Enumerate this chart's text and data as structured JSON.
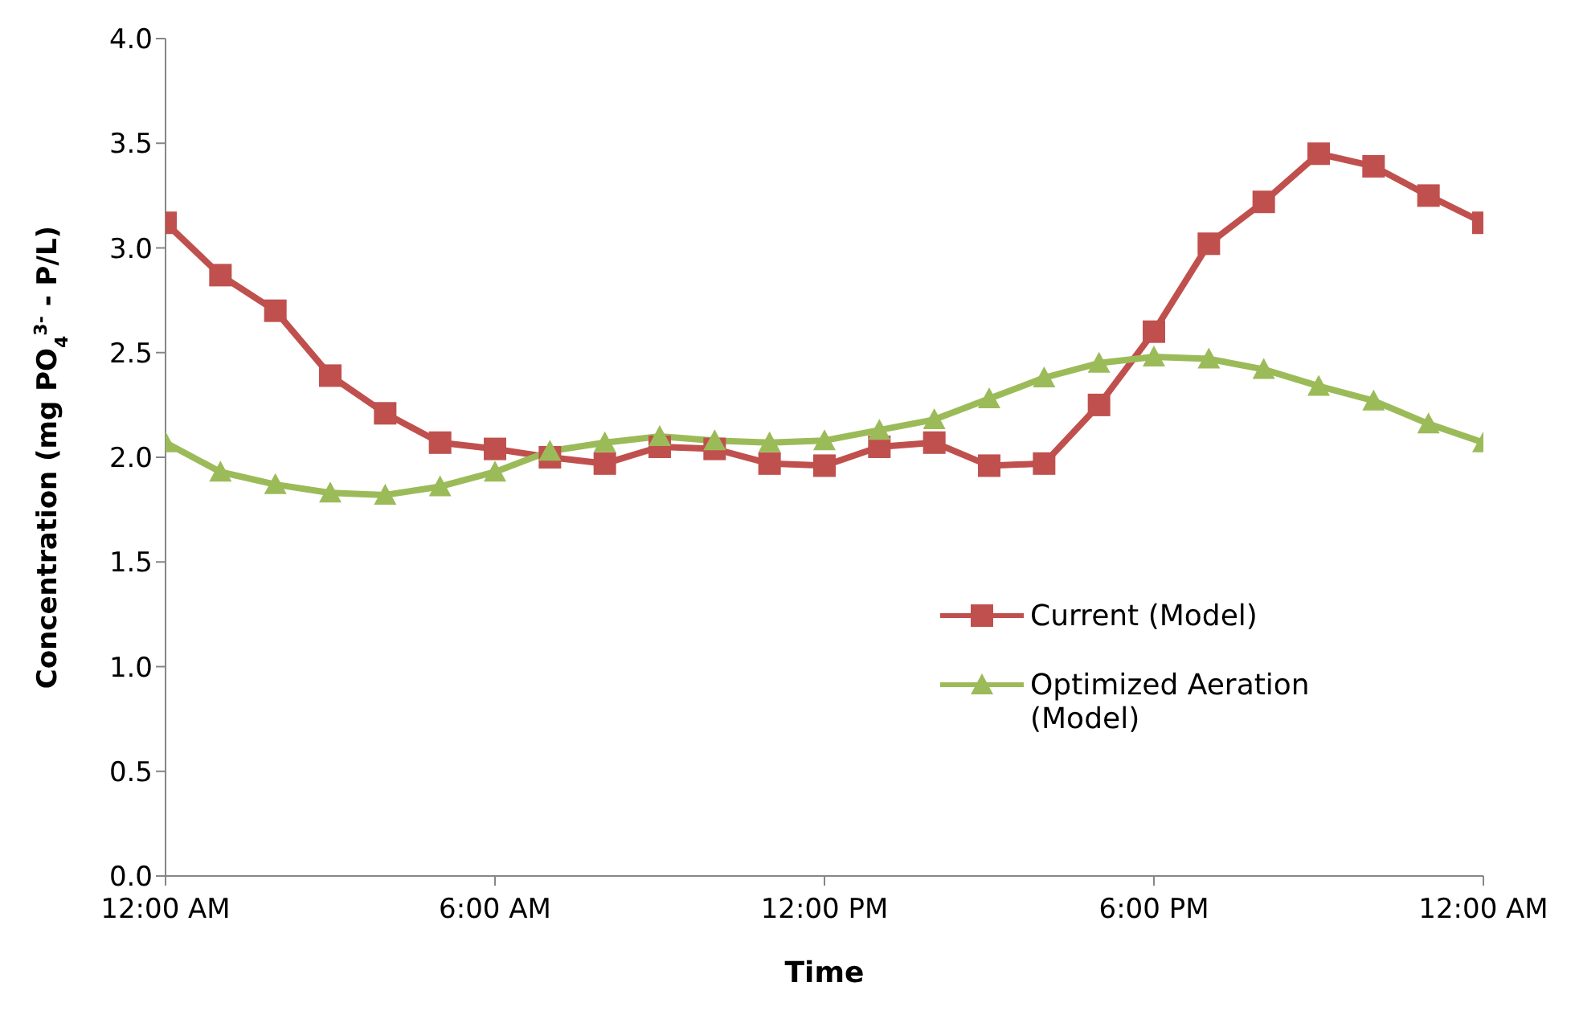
{
  "chart_data": {
    "type": "line",
    "xlabel": "Time",
    "ylabel": "Concentration (mg PO$_{4}$$^{3-}$ - P/L)",
    "x": [
      0,
      1,
      2,
      3,
      4,
      5,
      6,
      7,
      8,
      9,
      10,
      11,
      12,
      13,
      14,
      15,
      16,
      17,
      18,
      19,
      20,
      21,
      22,
      23,
      24
    ],
    "series": [
      {
        "name": "Current (Model)",
        "color": "#c0504d",
        "marker": "square",
        "values": [
          3.12,
          2.87,
          2.7,
          2.39,
          2.21,
          2.07,
          2.04,
          2.0,
          1.97,
          2.05,
          2.04,
          1.97,
          1.96,
          2.05,
          2.07,
          1.96,
          1.97,
          2.25,
          2.6,
          3.02,
          3.22,
          3.45,
          3.39,
          3.25,
          3.12
        ]
      },
      {
        "name": "Optimized Aeration (Model)",
        "color": "#9bbb59",
        "marker": "triangle",
        "values": [
          2.07,
          1.93,
          1.87,
          1.83,
          1.82,
          1.86,
          1.93,
          2.03,
          2.07,
          2.1,
          2.08,
          2.07,
          2.08,
          2.13,
          2.18,
          2.28,
          2.38,
          2.45,
          2.48,
          2.47,
          2.42,
          2.34,
          2.27,
          2.16,
          2.07
        ]
      }
    ],
    "xlim": [
      0,
      24
    ],
    "xticks": [
      {
        "value": 0,
        "label": "12:00 AM"
      },
      {
        "value": 6,
        "label": "6:00 AM"
      },
      {
        "value": 12,
        "label": "12:00 PM"
      },
      {
        "value": 18,
        "label": "6:00 PM"
      },
      {
        "value": 24,
        "label": "12:00 AM"
      }
    ],
    "ylim": [
      0,
      4
    ],
    "yticks": [
      {
        "value": 0,
        "label": "0.0"
      },
      {
        "value": 0.5,
        "label": "0.5"
      },
      {
        "value": 1,
        "label": "1.0"
      },
      {
        "value": 1.5,
        "label": "1.5"
      },
      {
        "value": 2,
        "label": "2.0"
      },
      {
        "value": 2.5,
        "label": "2.5"
      },
      {
        "value": 3,
        "label": "3.0"
      },
      {
        "value": 3.5,
        "label": "3.5"
      },
      {
        "value": 4,
        "label": "4.0"
      }
    ],
    "legend": "right",
    "line_style": "solid"
  }
}
